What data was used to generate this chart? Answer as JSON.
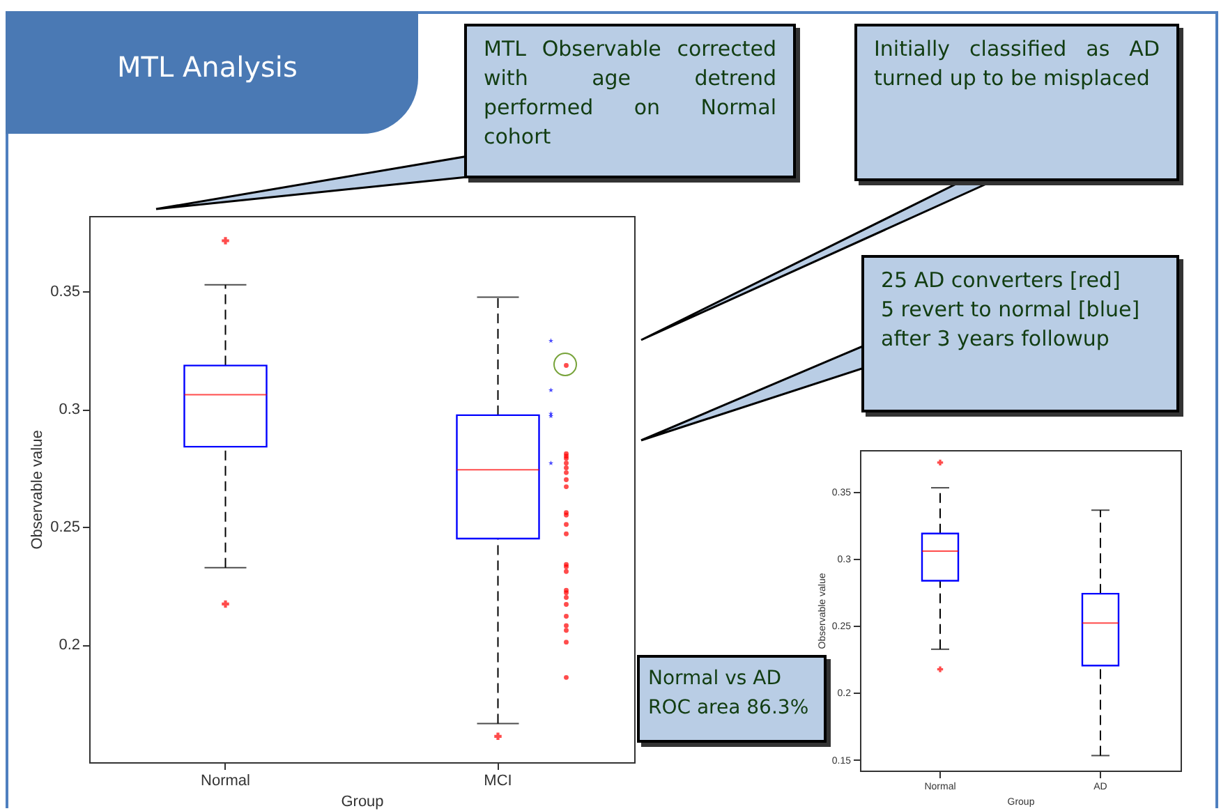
{
  "chart_data": [
    {
      "type": "box",
      "title": "MTL Analysis",
      "xlabel": "Group",
      "ylabel": "Observable value",
      "categories": [
        "Normal",
        "MCI"
      ],
      "ylim": [
        0.15,
        0.382
      ],
      "yticks": [
        0.2,
        0.25,
        0.3,
        0.35
      ],
      "annotations": [
        "MTL Observable corrected with age detrend performed on Normal cohort",
        "Initially classified as AD turned up to be misplaced",
        "25 AD converters [red]\n5 revert to normal [blue]\nafter 3 years followup"
      ],
      "series": [
        {
          "type": "box",
          "color": "#0000ff",
          "boxes": [
            {
              "low": 0.2326,
              "q1": 0.284,
              "median": 0.3061,
              "q3": 0.3185,
              "high": 0.3528,
              "outliers": [
                0.2172,
                0.3715
              ]
            },
            {
              "low": 0.1664,
              "q1": 0.245,
              "median": 0.2742,
              "q3": 0.2974,
              "high": 0.3475,
              "outliers": [
                0.161
              ]
            }
          ]
        },
        {
          "type": "scatter",
          "color": "#0000ff",
          "marker": "star",
          "x": [
            "MCI",
            "MCI",
            "MCI",
            "MCI",
            "MCI"
          ],
          "values": [
            0.329,
            0.308,
            0.298,
            0.297,
            0.277
          ]
        },
        {
          "type": "scatter",
          "color": "#ff0000",
          "marker": "circle",
          "x": [
            "MCI",
            "MCI",
            "MCI",
            "MCI",
            "MCI",
            "MCI",
            "MCI",
            "MCI",
            "MCI",
            "MCI",
            "MCI",
            "MCI",
            "MCI",
            "MCI",
            "MCI",
            "MCI",
            "MCI",
            "MCI",
            "MCI",
            "MCI",
            "MCI",
            "MCI",
            "MCI",
            "MCI",
            "MCI"
          ],
          "values": [
            0.3185,
            0.281,
            0.28,
            0.279,
            0.277,
            0.275,
            0.273,
            0.27,
            0.267,
            0.256,
            0.255,
            0.251,
            0.247,
            0.234,
            0.233,
            0.231,
            0.223,
            0.222,
            0.22,
            0.217,
            0.212,
            0.208,
            0.206,
            0.201,
            0.186
          ]
        }
      ]
    },
    {
      "type": "box",
      "xlabel": "Group",
      "ylabel": "Observable value",
      "categories": [
        "Normal",
        "AD"
      ],
      "ylim": [
        0.142,
        0.381
      ],
      "yticks": [
        0.15,
        0.2,
        0.25,
        0.3,
        0.35
      ],
      "annotations": [
        "Normal vs AD\nROC area 86.3%"
      ],
      "series": [
        {
          "type": "box",
          "color": "#0000ff",
          "boxes": [
            {
              "low": 0.2325,
              "q1": 0.2836,
              "median": 0.3056,
              "q3": 0.3188,
              "high": 0.3529,
              "outliers": [
                0.2175,
                0.3717
              ]
            },
            {
              "low": 0.1532,
              "q1": 0.2203,
              "median": 0.252,
              "q3": 0.2739,
              "high": 0.3362
            }
          ]
        }
      ]
    }
  ]
}
